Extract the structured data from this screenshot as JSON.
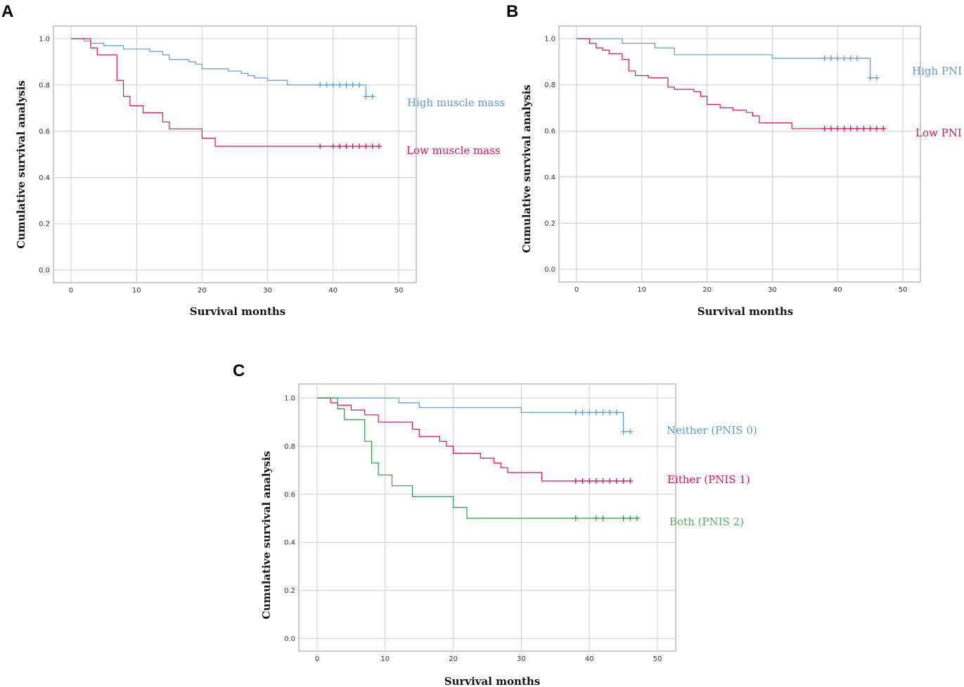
{
  "chart_data": [
    {
      "panel": "A",
      "type": "line",
      "subtype": "kaplan-meier",
      "xlabel": "Survival months",
      "ylabel": "Cumulative survival analysis",
      "xlim": [
        0,
        50
      ],
      "ylim": [
        0.0,
        1.0
      ],
      "x_ticks": [
        "0",
        "10",
        "20",
        "30",
        "40",
        "50"
      ],
      "y_ticks": [
        "0.0",
        "0.2",
        "0.4",
        "0.6",
        "0.8",
        "1.0"
      ],
      "grid": true,
      "series": [
        {
          "name": "High muscle mass",
          "color": "#5b9bd5",
          "steps": [
            [
              0,
              1.0
            ],
            [
              2,
              0.99
            ],
            [
              3,
              0.98
            ],
            [
              5,
              0.97
            ],
            [
              8,
              0.955
            ],
            [
              12,
              0.945
            ],
            [
              14,
              0.93
            ],
            [
              15,
              0.91
            ],
            [
              18,
              0.9
            ],
            [
              19,
              0.89
            ],
            [
              20,
              0.87
            ],
            [
              24,
              0.86
            ],
            [
              26,
              0.85
            ],
            [
              27,
              0.84
            ],
            [
              28,
              0.83
            ],
            [
              30,
              0.82
            ],
            [
              33,
              0.8
            ],
            [
              45,
              0.75
            ],
            [
              46,
              0.75
            ]
          ],
          "censored": [
            [
              38,
              0.8
            ],
            [
              39,
              0.8
            ],
            [
              40,
              0.8
            ],
            [
              41,
              0.8
            ],
            [
              42,
              0.8
            ],
            [
              43,
              0.8
            ],
            [
              44,
              0.8
            ],
            [
              45,
              0.75
            ],
            [
              46,
              0.75
            ]
          ]
        },
        {
          "name": "Low muscle mass",
          "color": "#d6135c",
          "steps": [
            [
              0,
              1.0
            ],
            [
              3,
              0.96
            ],
            [
              4,
              0.93
            ],
            [
              7,
              0.82
            ],
            [
              8,
              0.75
            ],
            [
              9,
              0.71
            ],
            [
              11,
              0.68
            ],
            [
              14,
              0.64
            ],
            [
              15,
              0.61
            ],
            [
              20,
              0.57
            ],
            [
              22,
              0.535
            ],
            [
              47,
              0.535
            ]
          ],
          "censored": [
            [
              38,
              0.535
            ],
            [
              40,
              0.535
            ],
            [
              41,
              0.535
            ],
            [
              42,
              0.535
            ],
            [
              43,
              0.535
            ],
            [
              44,
              0.535
            ],
            [
              45,
              0.535
            ],
            [
              46,
              0.535
            ],
            [
              47,
              0.535
            ]
          ]
        }
      ]
    },
    {
      "panel": "B",
      "type": "line",
      "subtype": "kaplan-meier",
      "xlabel": "Survival months",
      "ylabel": "Cumulative survival analysis",
      "xlim": [
        0,
        50
      ],
      "ylim": [
        0.0,
        1.0
      ],
      "x_ticks": [
        "0",
        "10",
        "20",
        "30",
        "40",
        "50"
      ],
      "y_ticks": [
        "0.0",
        "0.2",
        "0.4",
        "0.6",
        "0.8",
        "1.0"
      ],
      "grid": true,
      "series": [
        {
          "name": "High PNI",
          "color": "#5b9bd5",
          "steps": [
            [
              0,
              1.0
            ],
            [
              7,
              0.98
            ],
            [
              12,
              0.96
            ],
            [
              15,
              0.93
            ],
            [
              30,
              0.915
            ],
            [
              45,
              0.83
            ],
            [
              46,
              0.83
            ]
          ],
          "censored": [
            [
              38,
              0.915
            ],
            [
              39,
              0.915
            ],
            [
              40,
              0.915
            ],
            [
              41,
              0.915
            ],
            [
              42,
              0.915
            ],
            [
              43,
              0.915
            ],
            [
              45,
              0.83
            ],
            [
              46,
              0.83
            ]
          ]
        },
        {
          "name": "Low PNI",
          "color": "#d6135c",
          "steps": [
            [
              0,
              1.0
            ],
            [
              2,
              0.98
            ],
            [
              3,
              0.96
            ],
            [
              4,
              0.95
            ],
            [
              5,
              0.935
            ],
            [
              7,
              0.91
            ],
            [
              8,
              0.86
            ],
            [
              9,
              0.84
            ],
            [
              11,
              0.83
            ],
            [
              14,
              0.79
            ],
            [
              15,
              0.78
            ],
            [
              18,
              0.77
            ],
            [
              19,
              0.75
            ],
            [
              20,
              0.715
            ],
            [
              22,
              0.7
            ],
            [
              24,
              0.69
            ],
            [
              26,
              0.68
            ],
            [
              27,
              0.665
            ],
            [
              28,
              0.635
            ],
            [
              33,
              0.61
            ],
            [
              47,
              0.61
            ]
          ],
          "censored": [
            [
              38,
              0.61
            ],
            [
              39,
              0.61
            ],
            [
              40,
              0.61
            ],
            [
              41,
              0.61
            ],
            [
              42,
              0.61
            ],
            [
              43,
              0.61
            ],
            [
              44,
              0.61
            ],
            [
              45,
              0.61
            ],
            [
              46,
              0.61
            ],
            [
              47,
              0.61
            ]
          ]
        }
      ]
    },
    {
      "panel": "C",
      "type": "line",
      "subtype": "kaplan-meier",
      "xlabel": "Survival months",
      "ylabel": "Cumulative survival analysis",
      "xlim": [
        0,
        50
      ],
      "ylim": [
        0.0,
        1.0
      ],
      "x_ticks": [
        "0",
        "10",
        "20",
        "30",
        "40",
        "50"
      ],
      "y_ticks": [
        "0.0",
        "0.2",
        "0.4",
        "0.6",
        "0.8",
        "1.0"
      ],
      "grid": true,
      "series": [
        {
          "name": "Neither (PNIS 0)",
          "color": "#5b9bd5",
          "steps": [
            [
              0,
              1.0
            ],
            [
              12,
              0.98
            ],
            [
              15,
              0.96
            ],
            [
              30,
              0.94
            ],
            [
              45,
              0.86
            ],
            [
              46,
              0.86
            ]
          ],
          "censored": [
            [
              38,
              0.94
            ],
            [
              39,
              0.94
            ],
            [
              40,
              0.94
            ],
            [
              41,
              0.94
            ],
            [
              42,
              0.94
            ],
            [
              43,
              0.94
            ],
            [
              44,
              0.94
            ],
            [
              45,
              0.86
            ],
            [
              46,
              0.86
            ]
          ]
        },
        {
          "name": "Either (PNIS 1)",
          "color": "#d6135c",
          "steps": [
            [
              0,
              1.0
            ],
            [
              2,
              0.98
            ],
            [
              3,
              0.97
            ],
            [
              5,
              0.95
            ],
            [
              7,
              0.93
            ],
            [
              9,
              0.9
            ],
            [
              14,
              0.87
            ],
            [
              15,
              0.84
            ],
            [
              18,
              0.82
            ],
            [
              19,
              0.8
            ],
            [
              20,
              0.77
            ],
            [
              24,
              0.75
            ],
            [
              26,
              0.73
            ],
            [
              27,
              0.71
            ],
            [
              28,
              0.69
            ],
            [
              33,
              0.655
            ],
            [
              46,
              0.655
            ]
          ],
          "censored": [
            [
              38,
              0.655
            ],
            [
              39,
              0.655
            ],
            [
              40,
              0.655
            ],
            [
              41,
              0.655
            ],
            [
              42,
              0.655
            ],
            [
              43,
              0.655
            ],
            [
              44,
              0.655
            ],
            [
              45,
              0.655
            ],
            [
              46,
              0.655
            ]
          ]
        },
        {
          "name": "Both (PNIS 2)",
          "color": "#2e9a45",
          "steps": [
            [
              0,
              1.0
            ],
            [
              3,
              0.955
            ],
            [
              4,
              0.91
            ],
            [
              7,
              0.82
            ],
            [
              8,
              0.73
            ],
            [
              9,
              0.68
            ],
            [
              11,
              0.635
            ],
            [
              14,
              0.59
            ],
            [
              20,
              0.545
            ],
            [
              22,
              0.5
            ],
            [
              47,
              0.5
            ]
          ],
          "censored": [
            [
              38,
              0.5
            ],
            [
              41,
              0.5
            ],
            [
              42,
              0.5
            ],
            [
              45,
              0.5
            ],
            [
              46,
              0.5
            ],
            [
              47,
              0.5
            ]
          ]
        }
      ]
    }
  ]
}
